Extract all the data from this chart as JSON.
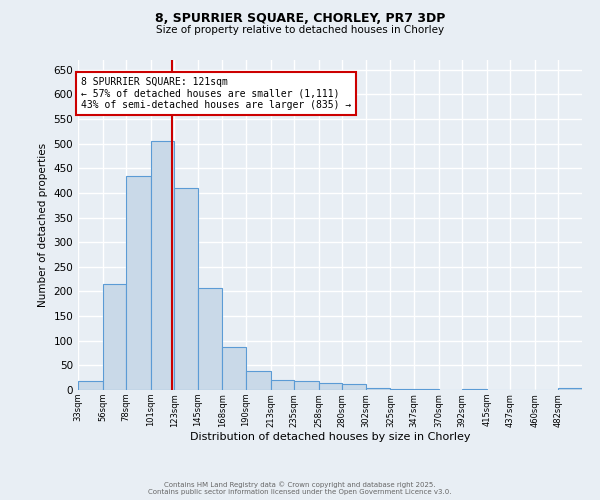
{
  "title1": "8, SPURRIER SQUARE, CHORLEY, PR7 3DP",
  "title2": "Size of property relative to detached houses in Chorley",
  "xlabel": "Distribution of detached houses by size in Chorley",
  "ylabel": "Number of detached properties",
  "bin_labels": [
    "33sqm",
    "56sqm",
    "78sqm",
    "101sqm",
    "123sqm",
    "145sqm",
    "168sqm",
    "190sqm",
    "213sqm",
    "235sqm",
    "258sqm",
    "280sqm",
    "302sqm",
    "325sqm",
    "347sqm",
    "370sqm",
    "392sqm",
    "415sqm",
    "437sqm",
    "460sqm",
    "482sqm"
  ],
  "bin_edges": [
    33,
    56,
    78,
    101,
    123,
    145,
    168,
    190,
    213,
    235,
    258,
    280,
    302,
    325,
    347,
    370,
    392,
    415,
    437,
    460,
    482
  ],
  "bar_heights": [
    18,
    215,
    435,
    505,
    410,
    207,
    87,
    38,
    20,
    18,
    15,
    12,
    5,
    3,
    2,
    1,
    3,
    1,
    0,
    0,
    5
  ],
  "bar_color": "#c9d9e8",
  "bar_edgecolor": "#5b9bd5",
  "vline_x": 121,
  "vline_color": "#cc0000",
  "annotation_lines": [
    "8 SPURRIER SQUARE: 121sqm",
    "← 57% of detached houses are smaller (1,111)",
    "43% of semi-detached houses are larger (835) →"
  ],
  "annotation_box_edgecolor": "#cc0000",
  "annotation_box_facecolor": "#ffffff",
  "ylim": [
    0,
    670
  ],
  "yticks": [
    0,
    50,
    100,
    150,
    200,
    250,
    300,
    350,
    400,
    450,
    500,
    550,
    600,
    650
  ],
  "background_color": "#e8eef4",
  "grid_color": "#ffffff",
  "footer1": "Contains HM Land Registry data © Crown copyright and database right 2025.",
  "footer2": "Contains public sector information licensed under the Open Government Licence v3.0."
}
